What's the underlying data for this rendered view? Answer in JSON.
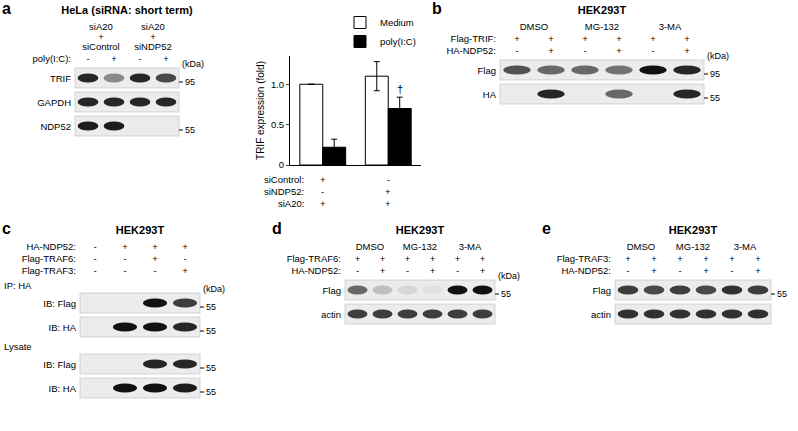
{
  "panels": [
    {
      "letter": "a",
      "title": "HeLa (siRNA: short term)",
      "groups": [
        {
          "lines": [
            "siA20",
            "+",
            "siControl"
          ],
          "lanes": 2
        },
        {
          "lines": [
            "siA20",
            "+",
            "siNDP52"
          ],
          "lanes": 2
        }
      ],
      "conditions": [
        {
          "name": "poly(I:C):",
          "signs": [
            "-",
            "+",
            "-",
            "+"
          ]
        }
      ],
      "kda_label": "(kDa)",
      "sections": [
        {
          "blots": [
            {
              "label": "TRIF",
              "marker": 95,
              "band_intensity": [
                0.9,
                0.45,
                0.9,
                0.75
              ]
            },
            {
              "label": "GAPDH",
              "band_intensity": [
                0.9,
                0.9,
                0.9,
                0.9
              ]
            },
            {
              "label": "NDP52",
              "marker": 55,
              "band_intensity": [
                0.95,
                0.95,
                0,
                0
              ]
            }
          ]
        }
      ]
    },
    {
      "letter": "b",
      "title": "HEK293T",
      "groups": [
        {
          "lines": [
            "DMSO"
          ],
          "lanes": 2
        },
        {
          "lines": [
            "MG-132"
          ],
          "lanes": 2
        },
        {
          "lines": [
            "3-MA"
          ],
          "lanes": 2
        }
      ],
      "conditions": [
        {
          "name": "Flag-TRIF:",
          "signs": [
            "+",
            "+",
            "+",
            "+",
            "+",
            "+"
          ]
        },
        {
          "name": "HA-NDP52:",
          "signs": [
            "-",
            "+",
            "-",
            "+",
            "-",
            "+"
          ]
        }
      ],
      "kda_label": "(kDa)",
      "sections": [
        {
          "blots": [
            {
              "label": "Flag",
              "marker": 95,
              "band_intensity": [
                0.7,
                0.6,
                0.6,
                0.55,
                1,
                0.9
              ]
            },
            {
              "label": "HA",
              "marker": 55,
              "band_intensity": [
                0,
                0.9,
                0,
                0.6,
                0,
                0.9
              ]
            }
          ]
        }
      ]
    },
    {
      "letter": "c",
      "title": "HEK293T",
      "groups": [],
      "conditions": [
        {
          "name": "HA-NDP52:",
          "signs": [
            "-",
            "+",
            "+",
            "+"
          ]
        },
        {
          "name": "Flag-TRAF6:",
          "signs": [
            "-",
            "-",
            "+",
            "-"
          ]
        },
        {
          "name": "Flag-TRAF3:",
          "signs": [
            "-",
            "-",
            "-",
            "+"
          ]
        }
      ],
      "kda_label": "(kDa)",
      "sections": [
        {
          "label": "IP: HA",
          "blots": [
            {
              "label": "IB: Flag",
              "marker": 55,
              "band_intensity": [
                0,
                0,
                1,
                0.8
              ]
            },
            {
              "label": "IB: HA",
              "marker": 55,
              "band_intensity": [
                0,
                1,
                1,
                0.9
              ]
            }
          ]
        },
        {
          "label": "Lysate",
          "blots": [
            {
              "label": "IB: Flag",
              "marker": 55,
              "band_intensity": [
                0,
                0,
                0.9,
                0.9
              ]
            },
            {
              "label": "IB: HA",
              "marker": 55,
              "band_intensity": [
                0,
                1,
                1,
                0.95
              ]
            }
          ]
        }
      ]
    },
    {
      "letter": "d",
      "title": "HEK293T",
      "groups": [
        {
          "lines": [
            "DMSO"
          ],
          "lanes": 2
        },
        {
          "lines": [
            "MG-132"
          ],
          "lanes": 2
        },
        {
          "lines": [
            "3-MA"
          ],
          "lanes": 2
        }
      ],
      "conditions": [
        {
          "name": "Flag-TRAF6:",
          "signs": [
            "+",
            "+",
            "+",
            "+",
            "+",
            "+"
          ]
        },
        {
          "name": "HA-NDP52:",
          "signs": [
            "-",
            "+",
            "-",
            "+",
            "-",
            "+"
          ]
        }
      ],
      "kda_label": "(kDa)",
      "sections": [
        {
          "blots": [
            {
              "label": "Flag",
              "marker": 55,
              "band_intensity": [
                0.6,
                0.2,
                0.1,
                0.05,
                1,
                1
              ]
            },
            {
              "label": "actin",
              "band_intensity": [
                0.8,
                0.8,
                0.8,
                0.8,
                0.8,
                0.8
              ]
            }
          ]
        }
      ]
    },
    {
      "letter": "e",
      "title": "HEK293T",
      "groups": [
        {
          "lines": [
            "DMSO"
          ],
          "lanes": 2
        },
        {
          "lines": [
            "MG-132"
          ],
          "lanes": 2
        },
        {
          "lines": [
            "3-MA"
          ],
          "lanes": 2
        }
      ],
      "conditions": [
        {
          "name": "Flag-TRAF3:",
          "signs": [
            "+",
            "+",
            "+",
            "+",
            "+",
            "+"
          ]
        },
        {
          "name": "HA-NDP52:",
          "signs": [
            "-",
            "+",
            "-",
            "+",
            "-",
            "+"
          ]
        }
      ],
      "sections": [
        {
          "blots": [
            {
              "label": "Flag",
              "marker": 55,
              "band_intensity": [
                0.8,
                0.75,
                0.8,
                0.75,
                0.85,
                0.8
              ]
            },
            {
              "label": "actin",
              "band_intensity": [
                0.85,
                0.85,
                0.85,
                0.85,
                0.85,
                0.85
              ]
            }
          ]
        }
      ]
    }
  ],
  "chart_data": {
    "type": "bar",
    "categories": [
      null,
      null
    ],
    "ylabel": "TRIF expression (fold)",
    "ylim": [
      0,
      1.35
    ],
    "yticks": [
      0,
      0.5,
      {
        "value": 1,
        "label": "1.0"
      }
    ],
    "tick_labels": "y",
    "legend": "top right",
    "series": [
      {
        "name": "Medium",
        "color": "#ffffff",
        "values": [
          1.0,
          1.1
        ],
        "errors": [
          null,
          0.18
        ]
      },
      {
        "name": "poly(I:C)",
        "color": "#000000",
        "values": [
          0.22,
          0.7
        ],
        "errors": [
          0.1,
          0.14
        ]
      }
    ],
    "annotations": [
      {
        "text": "†",
        "x": 1,
        "series": "poly(I:C)"
      }
    ],
    "conditions": [
      {
        "name": "siControl:",
        "signs": [
          "+",
          "-"
        ]
      },
      {
        "name": "siNDP52:",
        "signs": [
          "-",
          "+"
        ]
      },
      {
        "name": "siA20:",
        "signs": [
          "+",
          "+"
        ]
      }
    ]
  }
}
